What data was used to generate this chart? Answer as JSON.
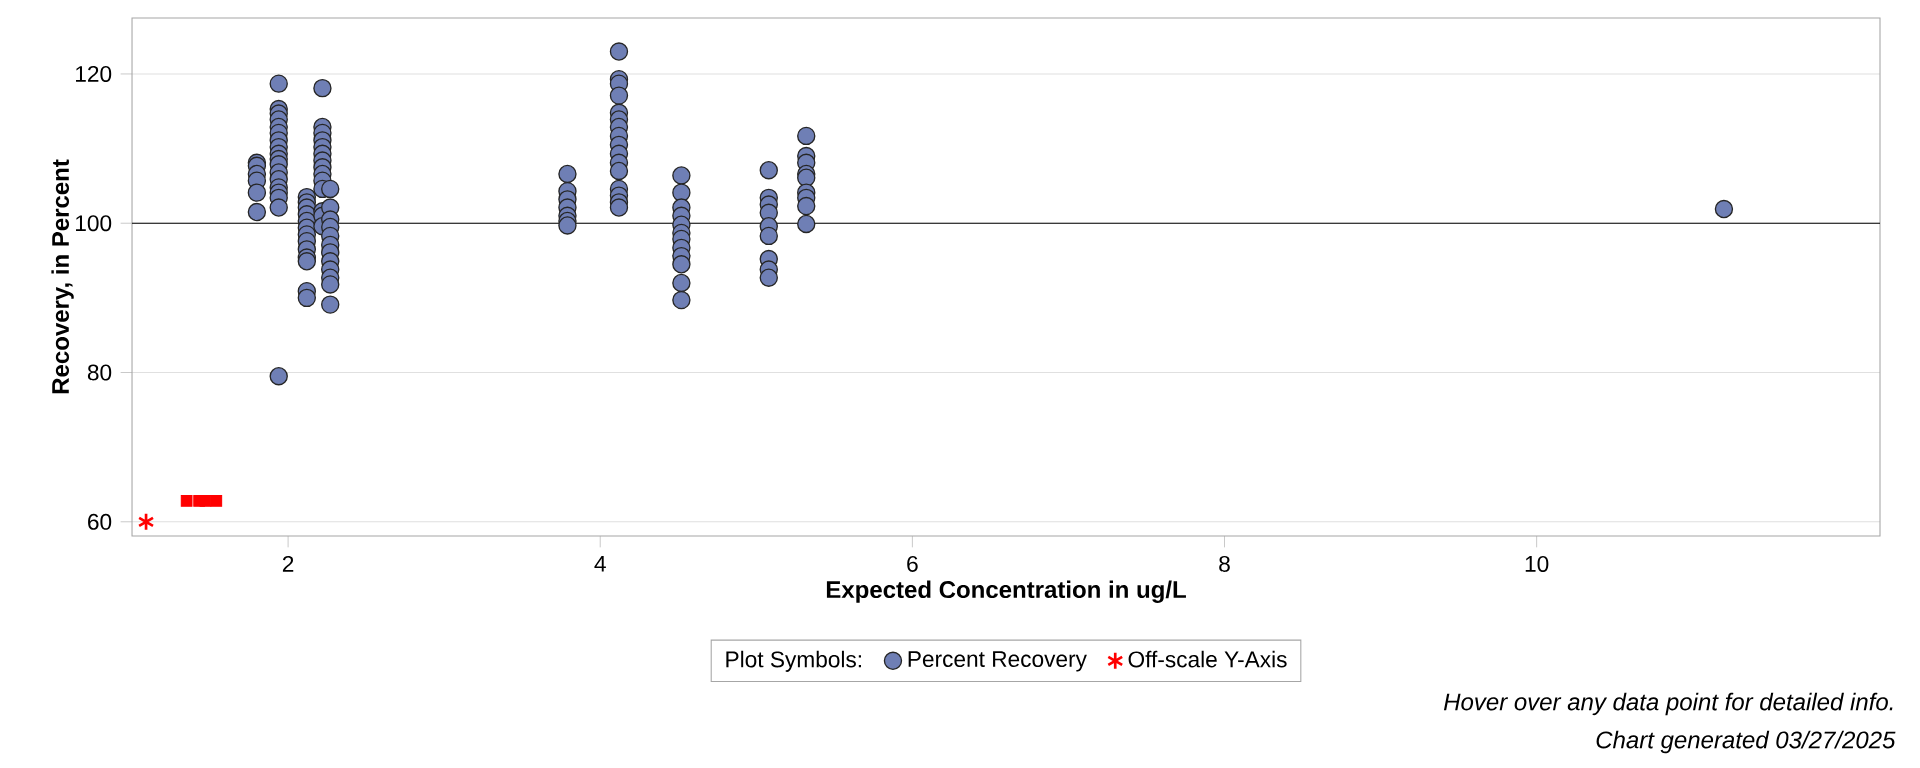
{
  "chart_data": {
    "type": "scatter",
    "xlabel": "Expected Concentration in ug/L",
    "ylabel": "Recovery, in Percent",
    "legend_title": "Plot Symbols:",
    "xlim": [
      1.0,
      12.2
    ],
    "ylim": [
      58.1,
      127.5
    ],
    "xticks": [
      2,
      4,
      6,
      8,
      10
    ],
    "yticks": [
      60,
      80,
      100,
      120
    ],
    "grid": "y",
    "legend": "bottom",
    "ref_lines": [
      {
        "axis": "y",
        "value": 100,
        "color": "#000000"
      }
    ],
    "series": [
      {
        "name": "Percent Recovery",
        "color": "#6f7fb5",
        "marker": "circle",
        "x": [
          1.8,
          1.8,
          1.8,
          1.8,
          1.8,
          1.8,
          1.94,
          1.94,
          1.94,
          1.94,
          1.94,
          1.94,
          1.94,
          1.94,
          1.94,
          1.94,
          1.94,
          1.94,
          1.94,
          1.94,
          1.94,
          1.94,
          1.94,
          1.94,
          2.12,
          2.12,
          2.12,
          2.12,
          2.12,
          2.12,
          2.12,
          2.12,
          2.12,
          2.12,
          2.12,
          2.12,
          2.12,
          2.22,
          2.22,
          2.22,
          2.22,
          2.22,
          2.22,
          2.22,
          2.22,
          2.22,
          2.22,
          2.22,
          2.22,
          2.22,
          2.22,
          2.27,
          2.27,
          2.27,
          2.27,
          2.27,
          2.27,
          2.27,
          2.27,
          2.27,
          2.27,
          2.27,
          2.27,
          3.79,
          3.79,
          3.79,
          3.79,
          3.79,
          3.79,
          3.79,
          4.12,
          4.12,
          4.12,
          4.12,
          4.12,
          4.12,
          4.12,
          4.12,
          4.12,
          4.12,
          4.12,
          4.12,
          4.12,
          4.12,
          4.12,
          4.12,
          4.52,
          4.52,
          4.52,
          4.52,
          4.52,
          4.52,
          4.52,
          4.52,
          4.52,
          4.52,
          4.52,
          4.52,
          5.08,
          5.08,
          5.08,
          5.08,
          5.08,
          5.08,
          5.08,
          5.08,
          5.08,
          5.32,
          5.32,
          5.32,
          5.32,
          5.32,
          5.32,
          5.32,
          5.32,
          5.32,
          11.2
        ],
        "values": [
          108.1,
          107.7,
          106.6,
          105.7,
          104.1,
          101.5,
          118.7,
          115.3,
          114.7,
          113.9,
          112.9,
          112.1,
          111.1,
          110.2,
          109.3,
          108.6,
          107.9,
          106.8,
          105.9,
          104.8,
          104.1,
          103.4,
          102.1,
          79.5,
          103.5,
          102.8,
          102.1,
          101.2,
          100.3,
          99.4,
          98.5,
          97.6,
          96.5,
          95.4,
          94.9,
          90.9,
          90.0,
          118.1,
          112.9,
          112.1,
          111.1,
          110.2,
          109.3,
          108.4,
          107.5,
          106.6,
          105.7,
          104.6,
          101.6,
          101.0,
          99.6,
          104.6,
          102.1,
          100.5,
          99.5,
          98.3,
          97.1,
          96.1,
          94.9,
          93.8,
          92.7,
          91.8,
          89.1,
          106.6,
          104.3,
          103.2,
          102.1,
          101.0,
          100.3,
          99.7,
          123.0,
          119.3,
          118.7,
          117.1,
          114.8,
          113.9,
          112.9,
          111.7,
          110.5,
          109.3,
          108.1,
          107.0,
          104.6,
          103.7,
          102.8,
          102.1,
          106.4,
          104.1,
          102.1,
          101.0,
          99.8,
          98.7,
          97.9,
          96.7,
          95.6,
          94.5,
          92.0,
          89.7,
          107.1,
          103.4,
          102.5,
          101.4,
          99.6,
          98.3,
          95.2,
          93.8,
          92.7,
          111.7,
          109.0,
          108.1,
          106.6,
          106.1,
          104.1,
          103.4,
          102.3,
          99.9,
          101.9
        ]
      },
      {
        "name": "Off-scale Y-Axis",
        "color": "#ff0000",
        "marker": "cross",
        "x": [
          1.09
        ],
        "values": [
          60.0
        ]
      },
      {
        "color": "#ff0000",
        "marker": "square",
        "x": [
          1.35,
          1.43,
          1.47,
          1.54
        ],
        "values": [
          62.8,
          62.8,
          62.8,
          62.8
        ]
      }
    ],
    "annotations": [
      "Hover over any data point for detailed info.",
      "Chart generated 03/27/2025"
    ]
  }
}
